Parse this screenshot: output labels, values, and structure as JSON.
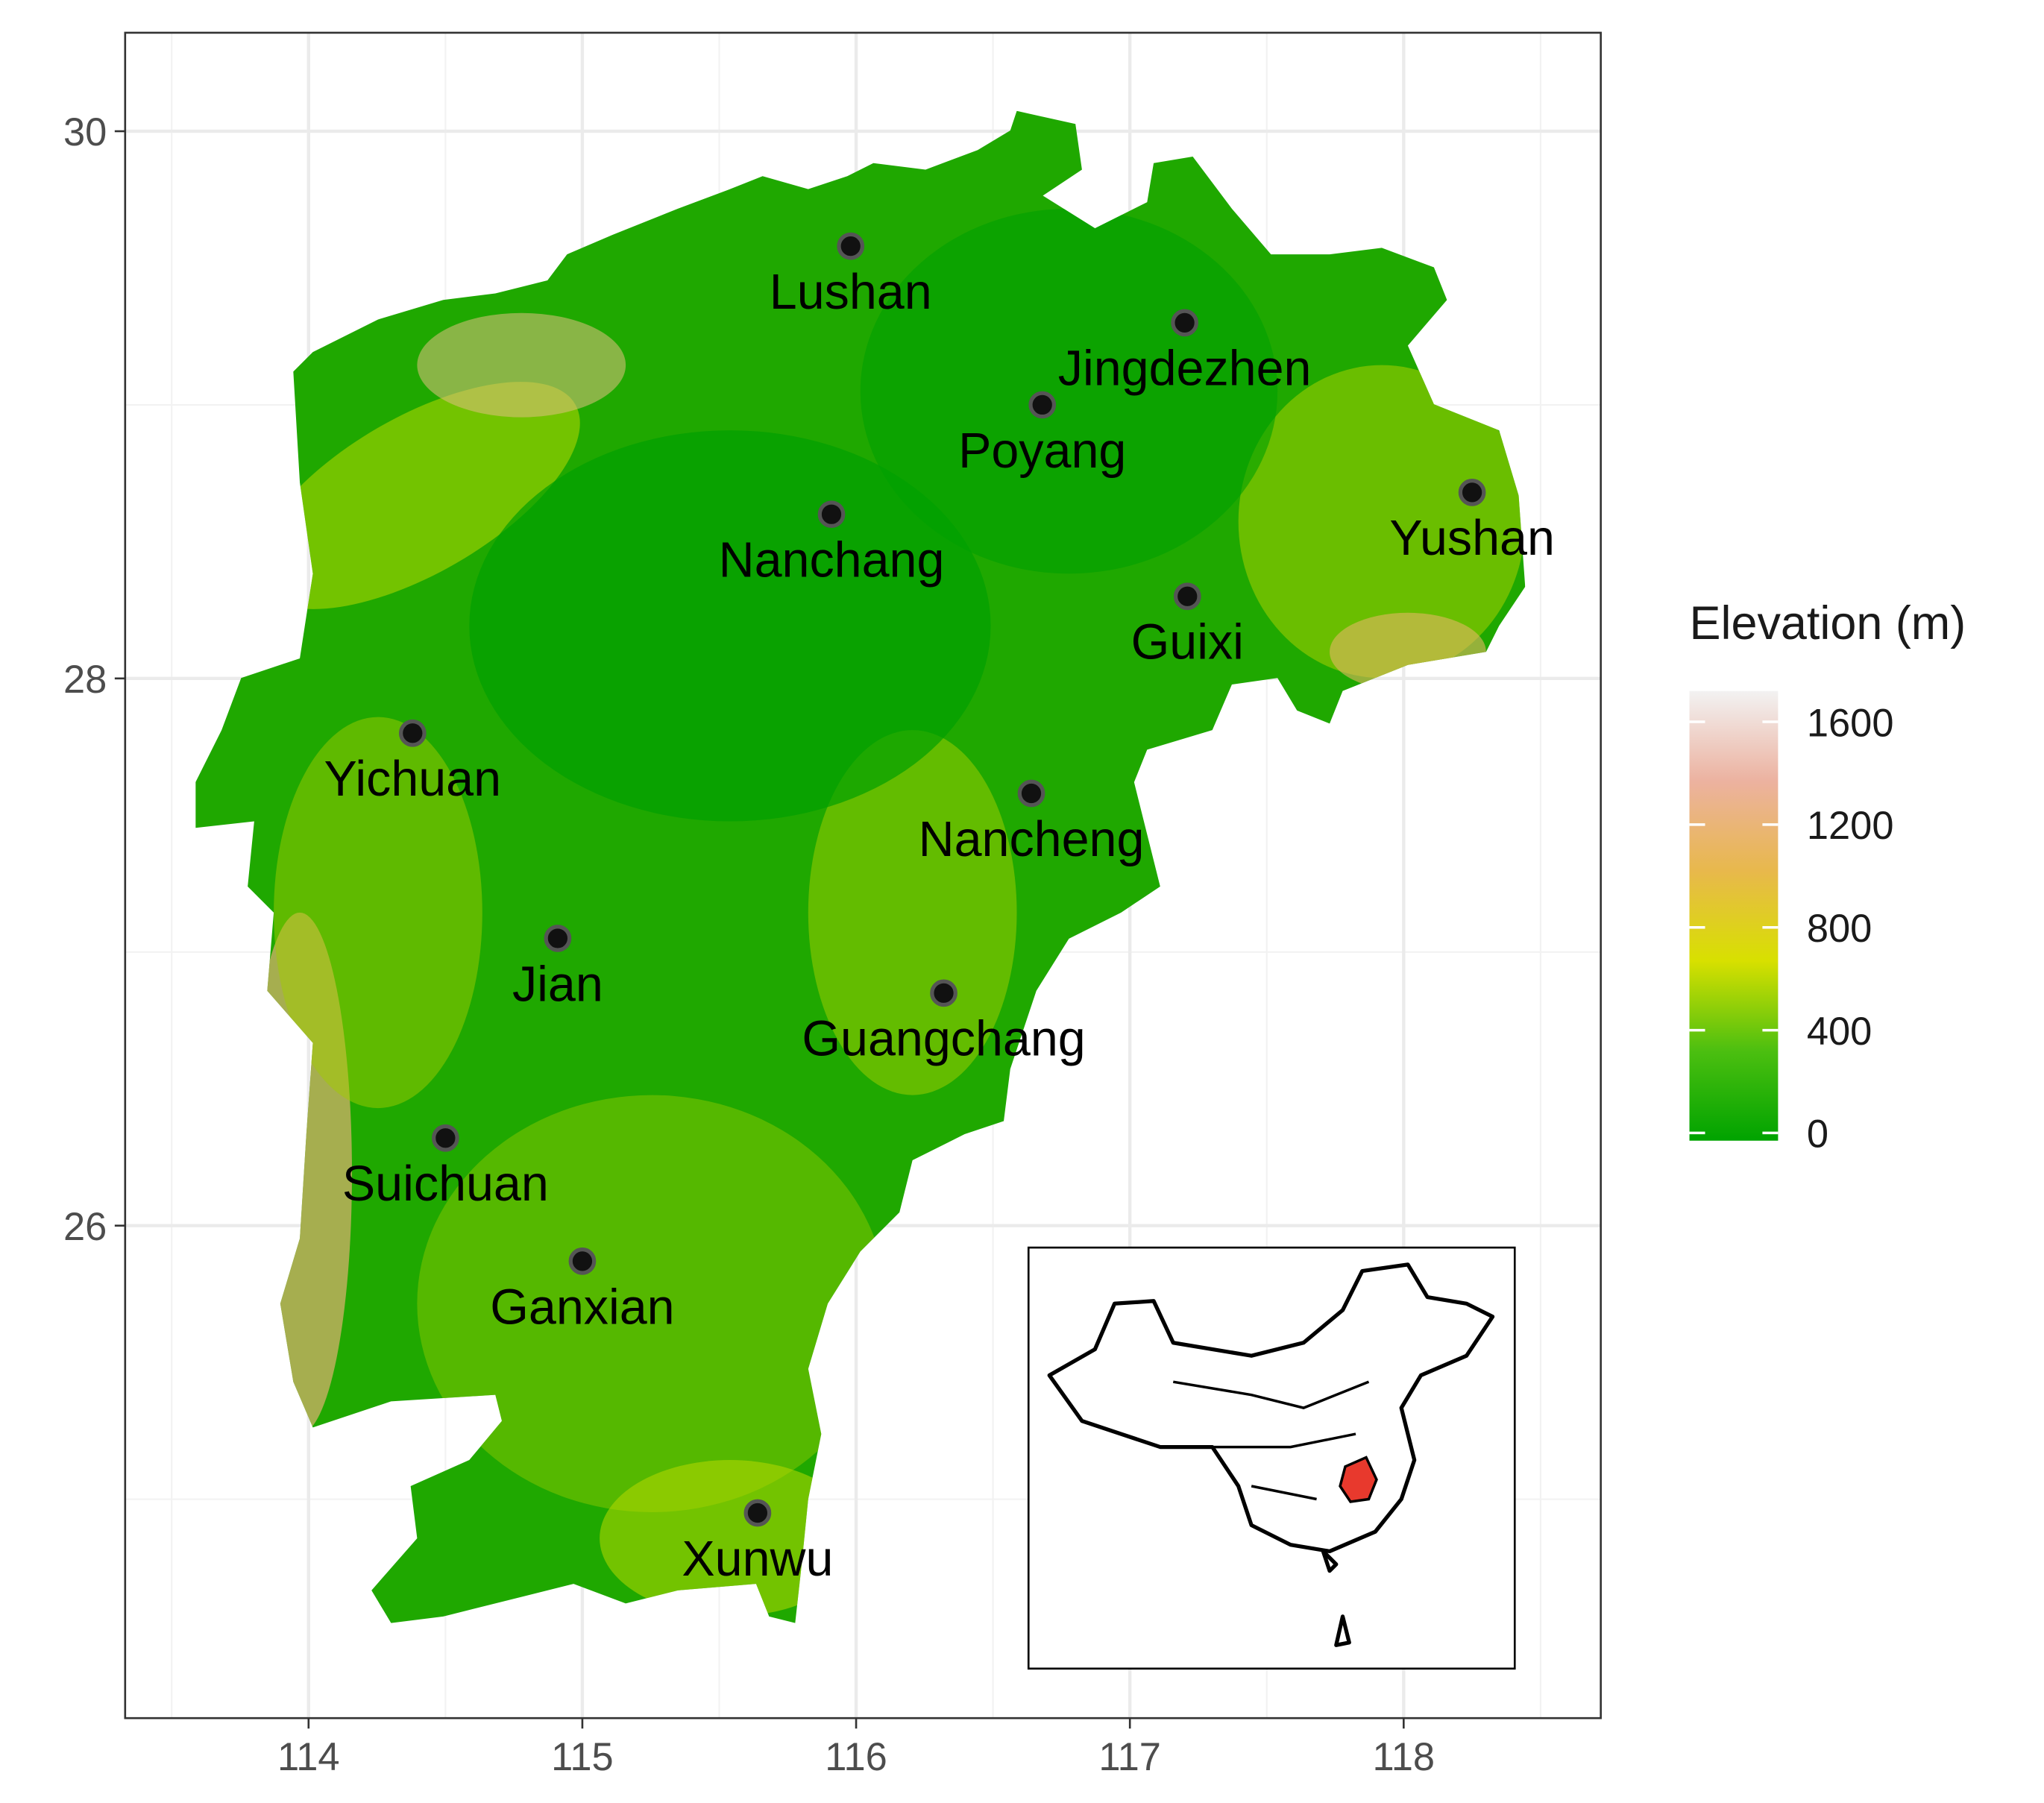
{
  "chart_data": {
    "type": "map",
    "xlim": [
      113.33,
      118.72
    ],
    "ylim": [
      24.2,
      30.36
    ],
    "xticks": [
      114,
      115,
      116,
      117,
      118
    ],
    "yticks": [
      26,
      28,
      30
    ],
    "grid": true,
    "points": [
      {
        "name": "Lushan",
        "x": 115.98,
        "y": 29.58
      },
      {
        "name": "Jingdezhen",
        "x": 117.2,
        "y": 29.3
      },
      {
        "name": "Poyang",
        "x": 116.68,
        "y": 29.0
      },
      {
        "name": "Nanchang",
        "x": 115.91,
        "y": 28.6
      },
      {
        "name": "Yushan",
        "x": 118.25,
        "y": 28.68
      },
      {
        "name": "Guixi",
        "x": 117.21,
        "y": 28.3
      },
      {
        "name": "Yichuan",
        "x": 114.38,
        "y": 27.8
      },
      {
        "name": "Nancheng",
        "x": 116.64,
        "y": 27.58
      },
      {
        "name": "Jian",
        "x": 114.91,
        "y": 27.05
      },
      {
        "name": "Guangchang",
        "x": 116.32,
        "y": 26.85
      },
      {
        "name": "Suichuan",
        "x": 114.5,
        "y": 26.32
      },
      {
        "name": "Ganxian",
        "x": 115.0,
        "y": 25.87
      },
      {
        "name": "Xunwu",
        "x": 115.64,
        "y": 24.95
      }
    ],
    "legend": {
      "title": "Elevation (m)",
      "lim": [
        -30,
        1720
      ],
      "ticks": [
        0,
        400,
        800,
        1200,
        1600
      ],
      "colors": [
        "#00a300",
        "#4cbf10",
        "#d8e000",
        "#e8b84c",
        "#ecb2a0",
        "#f2f2f2"
      ]
    }
  }
}
